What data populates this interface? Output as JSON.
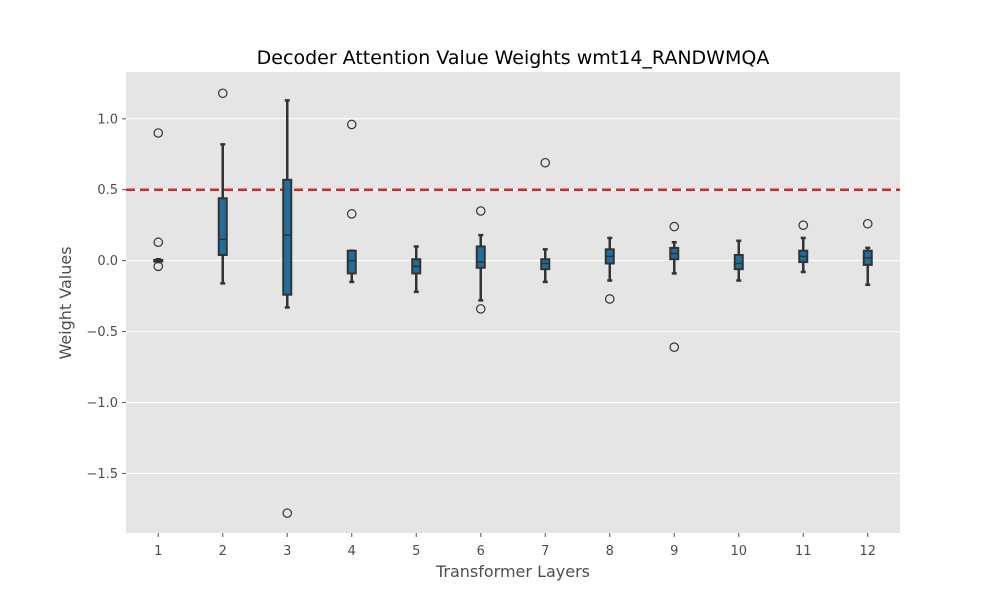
{
  "chart_data": {
    "type": "boxplot",
    "title": "Decoder Attention Value Weights wmt14_RANDWMQA",
    "xlabel": "Transformer Layers",
    "ylabel": "Weight Values",
    "ylim": [
      -1.92,
      1.33
    ],
    "yticks": [
      -1.5,
      -1.0,
      -0.5,
      0.0,
      0.5,
      1.0
    ],
    "ytick_labels": [
      "−1.5",
      "−1.0",
      "−0.5",
      "0.0",
      "0.5",
      "1.0"
    ],
    "categories": [
      "1",
      "2",
      "3",
      "4",
      "5",
      "6",
      "7",
      "8",
      "9",
      "10",
      "11",
      "12"
    ],
    "boxes": [
      {
        "layer": "1",
        "whisker_low": -0.01,
        "q1": -0.005,
        "median": 0.0,
        "q3": 0.005,
        "whisker_high": 0.01,
        "outliers": [
          0.9,
          0.13,
          -0.04
        ]
      },
      {
        "layer": "2",
        "whisker_low": -0.16,
        "q1": 0.04,
        "median": 0.15,
        "q3": 0.44,
        "whisker_high": 0.82,
        "outliers": [
          1.18
        ]
      },
      {
        "layer": "3",
        "whisker_low": -0.33,
        "q1": -0.24,
        "median": 0.18,
        "q3": 0.57,
        "whisker_high": 1.13,
        "outliers": [
          -1.78
        ]
      },
      {
        "layer": "4",
        "whisker_low": -0.15,
        "q1": -0.09,
        "median": 0.0,
        "q3": 0.07,
        "whisker_high": 0.07,
        "outliers": [
          0.96,
          0.33
        ]
      },
      {
        "layer": "5",
        "whisker_low": -0.22,
        "q1": -0.09,
        "median": -0.04,
        "q3": 0.01,
        "whisker_high": 0.1,
        "outliers": []
      },
      {
        "layer": "6",
        "whisker_low": -0.28,
        "q1": -0.05,
        "median": -0.01,
        "q3": 0.1,
        "whisker_high": 0.18,
        "outliers": [
          0.35,
          -0.34
        ]
      },
      {
        "layer": "7",
        "whisker_low": -0.15,
        "q1": -0.06,
        "median": -0.02,
        "q3": 0.01,
        "whisker_high": 0.08,
        "outliers": [
          0.69
        ]
      },
      {
        "layer": "8",
        "whisker_low": -0.14,
        "q1": -0.02,
        "median": 0.03,
        "q3": 0.08,
        "whisker_high": 0.16,
        "outliers": [
          -0.27
        ]
      },
      {
        "layer": "9",
        "whisker_low": -0.09,
        "q1": 0.01,
        "median": 0.05,
        "q3": 0.09,
        "whisker_high": 0.13,
        "outliers": [
          0.24,
          -0.61
        ]
      },
      {
        "layer": "10",
        "whisker_low": -0.14,
        "q1": -0.06,
        "median": -0.02,
        "q3": 0.04,
        "whisker_high": 0.14,
        "outliers": []
      },
      {
        "layer": "11",
        "whisker_low": -0.08,
        "q1": -0.01,
        "median": 0.03,
        "q3": 0.07,
        "whisker_high": 0.16,
        "outliers": [
          0.25
        ]
      },
      {
        "layer": "12",
        "whisker_low": -0.17,
        "q1": -0.03,
        "median": 0.02,
        "q3": 0.07,
        "whisker_high": 0.09,
        "outliers": [
          0.26
        ]
      }
    ],
    "reference_line": {
      "y": 0.5,
      "style": "dashed",
      "color": "#d62728"
    },
    "box_color": "#1f6f9a",
    "edge_color": "#333333",
    "background_color": "#e5e5e5",
    "grid": true,
    "grid_axis": "y",
    "legend": "none"
  }
}
